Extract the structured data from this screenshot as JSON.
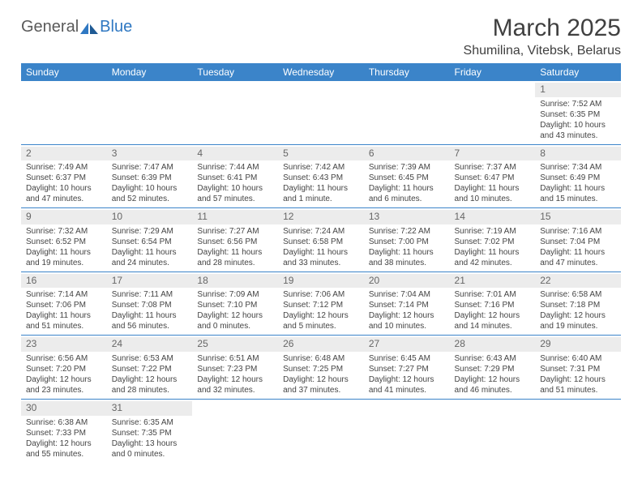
{
  "logo": {
    "general": "General",
    "blue": "Blue"
  },
  "title": "March 2025",
  "location": "Shumilina, Vitebsk, Belarus",
  "dayHeaders": [
    "Sunday",
    "Monday",
    "Tuesday",
    "Wednesday",
    "Thursday",
    "Friday",
    "Saturday"
  ],
  "colors": {
    "headerBg": "#3b84c9",
    "headerText": "#ffffff",
    "daynumBg": "#ececec",
    "rowDivider": "#3b84c9",
    "logoBlue": "#2f78c2",
    "logoGray": "#5a5a5a"
  },
  "weeks": [
    [
      {
        "n": "",
        "empty": true
      },
      {
        "n": "",
        "empty": true
      },
      {
        "n": "",
        "empty": true
      },
      {
        "n": "",
        "empty": true
      },
      {
        "n": "",
        "empty": true
      },
      {
        "n": "",
        "empty": true
      },
      {
        "n": "1",
        "sunrise": "Sunrise: 7:52 AM",
        "sunset": "Sunset: 6:35 PM",
        "dl1": "Daylight: 10 hours",
        "dl2": "and 43 minutes."
      }
    ],
    [
      {
        "n": "2",
        "sunrise": "Sunrise: 7:49 AM",
        "sunset": "Sunset: 6:37 PM",
        "dl1": "Daylight: 10 hours",
        "dl2": "and 47 minutes."
      },
      {
        "n": "3",
        "sunrise": "Sunrise: 7:47 AM",
        "sunset": "Sunset: 6:39 PM",
        "dl1": "Daylight: 10 hours",
        "dl2": "and 52 minutes."
      },
      {
        "n": "4",
        "sunrise": "Sunrise: 7:44 AM",
        "sunset": "Sunset: 6:41 PM",
        "dl1": "Daylight: 10 hours",
        "dl2": "and 57 minutes."
      },
      {
        "n": "5",
        "sunrise": "Sunrise: 7:42 AM",
        "sunset": "Sunset: 6:43 PM",
        "dl1": "Daylight: 11 hours",
        "dl2": "and 1 minute."
      },
      {
        "n": "6",
        "sunrise": "Sunrise: 7:39 AM",
        "sunset": "Sunset: 6:45 PM",
        "dl1": "Daylight: 11 hours",
        "dl2": "and 6 minutes."
      },
      {
        "n": "7",
        "sunrise": "Sunrise: 7:37 AM",
        "sunset": "Sunset: 6:47 PM",
        "dl1": "Daylight: 11 hours",
        "dl2": "and 10 minutes."
      },
      {
        "n": "8",
        "sunrise": "Sunrise: 7:34 AM",
        "sunset": "Sunset: 6:49 PM",
        "dl1": "Daylight: 11 hours",
        "dl2": "and 15 minutes."
      }
    ],
    [
      {
        "n": "9",
        "sunrise": "Sunrise: 7:32 AM",
        "sunset": "Sunset: 6:52 PM",
        "dl1": "Daylight: 11 hours",
        "dl2": "and 19 minutes."
      },
      {
        "n": "10",
        "sunrise": "Sunrise: 7:29 AM",
        "sunset": "Sunset: 6:54 PM",
        "dl1": "Daylight: 11 hours",
        "dl2": "and 24 minutes."
      },
      {
        "n": "11",
        "sunrise": "Sunrise: 7:27 AM",
        "sunset": "Sunset: 6:56 PM",
        "dl1": "Daylight: 11 hours",
        "dl2": "and 28 minutes."
      },
      {
        "n": "12",
        "sunrise": "Sunrise: 7:24 AM",
        "sunset": "Sunset: 6:58 PM",
        "dl1": "Daylight: 11 hours",
        "dl2": "and 33 minutes."
      },
      {
        "n": "13",
        "sunrise": "Sunrise: 7:22 AM",
        "sunset": "Sunset: 7:00 PM",
        "dl1": "Daylight: 11 hours",
        "dl2": "and 38 minutes."
      },
      {
        "n": "14",
        "sunrise": "Sunrise: 7:19 AM",
        "sunset": "Sunset: 7:02 PM",
        "dl1": "Daylight: 11 hours",
        "dl2": "and 42 minutes."
      },
      {
        "n": "15",
        "sunrise": "Sunrise: 7:16 AM",
        "sunset": "Sunset: 7:04 PM",
        "dl1": "Daylight: 11 hours",
        "dl2": "and 47 minutes."
      }
    ],
    [
      {
        "n": "16",
        "sunrise": "Sunrise: 7:14 AM",
        "sunset": "Sunset: 7:06 PM",
        "dl1": "Daylight: 11 hours",
        "dl2": "and 51 minutes."
      },
      {
        "n": "17",
        "sunrise": "Sunrise: 7:11 AM",
        "sunset": "Sunset: 7:08 PM",
        "dl1": "Daylight: 11 hours",
        "dl2": "and 56 minutes."
      },
      {
        "n": "18",
        "sunrise": "Sunrise: 7:09 AM",
        "sunset": "Sunset: 7:10 PM",
        "dl1": "Daylight: 12 hours",
        "dl2": "and 0 minutes."
      },
      {
        "n": "19",
        "sunrise": "Sunrise: 7:06 AM",
        "sunset": "Sunset: 7:12 PM",
        "dl1": "Daylight: 12 hours",
        "dl2": "and 5 minutes."
      },
      {
        "n": "20",
        "sunrise": "Sunrise: 7:04 AM",
        "sunset": "Sunset: 7:14 PM",
        "dl1": "Daylight: 12 hours",
        "dl2": "and 10 minutes."
      },
      {
        "n": "21",
        "sunrise": "Sunrise: 7:01 AM",
        "sunset": "Sunset: 7:16 PM",
        "dl1": "Daylight: 12 hours",
        "dl2": "and 14 minutes."
      },
      {
        "n": "22",
        "sunrise": "Sunrise: 6:58 AM",
        "sunset": "Sunset: 7:18 PM",
        "dl1": "Daylight: 12 hours",
        "dl2": "and 19 minutes."
      }
    ],
    [
      {
        "n": "23",
        "sunrise": "Sunrise: 6:56 AM",
        "sunset": "Sunset: 7:20 PM",
        "dl1": "Daylight: 12 hours",
        "dl2": "and 23 minutes."
      },
      {
        "n": "24",
        "sunrise": "Sunrise: 6:53 AM",
        "sunset": "Sunset: 7:22 PM",
        "dl1": "Daylight: 12 hours",
        "dl2": "and 28 minutes."
      },
      {
        "n": "25",
        "sunrise": "Sunrise: 6:51 AM",
        "sunset": "Sunset: 7:23 PM",
        "dl1": "Daylight: 12 hours",
        "dl2": "and 32 minutes."
      },
      {
        "n": "26",
        "sunrise": "Sunrise: 6:48 AM",
        "sunset": "Sunset: 7:25 PM",
        "dl1": "Daylight: 12 hours",
        "dl2": "and 37 minutes."
      },
      {
        "n": "27",
        "sunrise": "Sunrise: 6:45 AM",
        "sunset": "Sunset: 7:27 PM",
        "dl1": "Daylight: 12 hours",
        "dl2": "and 41 minutes."
      },
      {
        "n": "28",
        "sunrise": "Sunrise: 6:43 AM",
        "sunset": "Sunset: 7:29 PM",
        "dl1": "Daylight: 12 hours",
        "dl2": "and 46 minutes."
      },
      {
        "n": "29",
        "sunrise": "Sunrise: 6:40 AM",
        "sunset": "Sunset: 7:31 PM",
        "dl1": "Daylight: 12 hours",
        "dl2": "and 51 minutes."
      }
    ],
    [
      {
        "n": "30",
        "sunrise": "Sunrise: 6:38 AM",
        "sunset": "Sunset: 7:33 PM",
        "dl1": "Daylight: 12 hours",
        "dl2": "and 55 minutes."
      },
      {
        "n": "31",
        "sunrise": "Sunrise: 6:35 AM",
        "sunset": "Sunset: 7:35 PM",
        "dl1": "Daylight: 13 hours",
        "dl2": "and 0 minutes."
      },
      {
        "n": "",
        "empty": true
      },
      {
        "n": "",
        "empty": true
      },
      {
        "n": "",
        "empty": true
      },
      {
        "n": "",
        "empty": true
      },
      {
        "n": "",
        "empty": true
      }
    ]
  ]
}
